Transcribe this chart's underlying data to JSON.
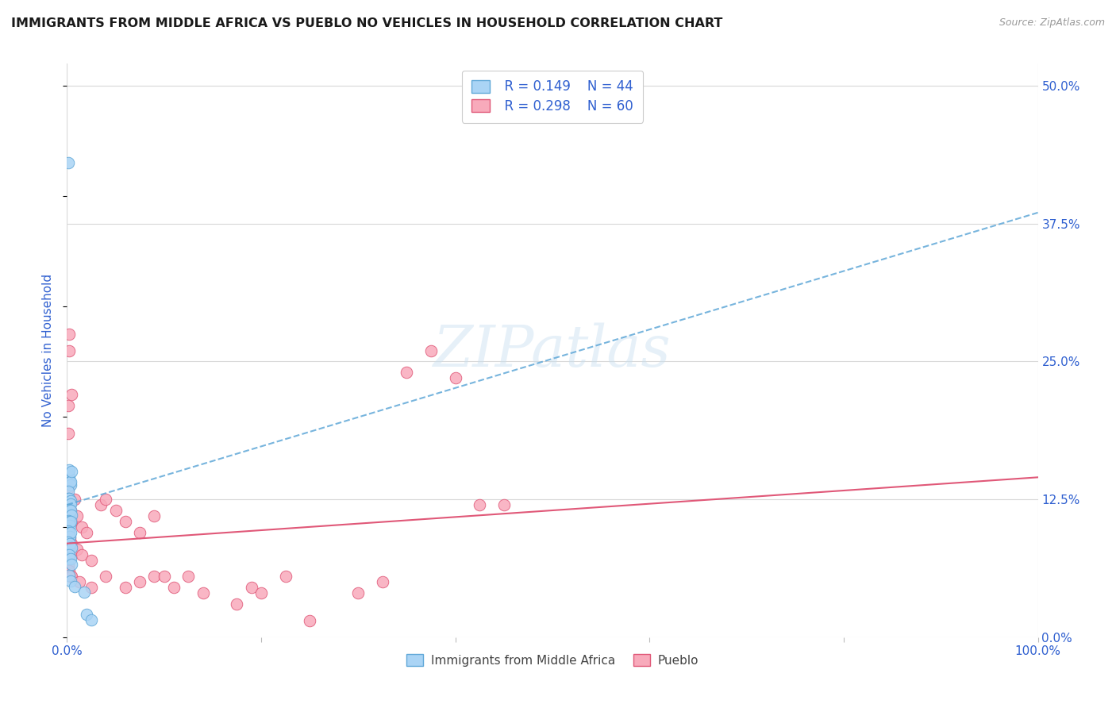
{
  "title": "IMMIGRANTS FROM MIDDLE AFRICA VS PUEBLO NO VEHICLES IN HOUSEHOLD CORRELATION CHART",
  "source": "Source: ZipAtlas.com",
  "ylabel": "No Vehicles in Household",
  "xlim": [
    0,
    100
  ],
  "ylim": [
    0,
    52
  ],
  "yticks": [
    0,
    12.5,
    25.0,
    37.5,
    50.0
  ],
  "ytick_labels": [
    "0.0%",
    "12.5%",
    "25.0%",
    "37.5%",
    "50.0%"
  ],
  "xtick_positions": [
    0,
    20,
    40,
    60,
    80,
    100
  ],
  "xtick_labels": [
    "0.0%",
    "",
    "",
    "",
    "",
    "100.0%"
  ],
  "background_color": "#ffffff",
  "grid_color": "#d8d8d8",
  "watermark": "ZIPatlas",
  "series1_label": "Immigrants from Middle Africa",
  "series2_label": "Pueblo",
  "series1_color": "#aad4f5",
  "series2_color": "#f8aabb",
  "series1_edge_color": "#60a8d8",
  "series2_edge_color": "#e05878",
  "legend_R1": "R = 0.149",
  "legend_N1": "N = 44",
  "legend_R2": "R = 0.298",
  "legend_N2": "N = 60",
  "legend_text_color": "#3060d0",
  "series1_line_color": "#60a8d8",
  "series2_line_color": "#e05878",
  "s1_R": 0.149,
  "s2_R": 0.298,
  "blue_line": [
    0,
    100
  ],
  "blue_line_y": [
    12.0,
    38.5
  ],
  "pink_line": [
    0,
    100
  ],
  "pink_line_y": [
    8.5,
    14.5
  ],
  "blue_points": [
    [
      0.15,
      43.0
    ],
    [
      0.1,
      14.8
    ],
    [
      0.15,
      14.2
    ],
    [
      0.2,
      14.6
    ],
    [
      0.25,
      15.2
    ],
    [
      0.3,
      14.1
    ],
    [
      0.35,
      13.8
    ],
    [
      0.4,
      14.1
    ],
    [
      0.5,
      15.0
    ],
    [
      0.1,
      13.2
    ],
    [
      0.15,
      12.6
    ],
    [
      0.2,
      12.2
    ],
    [
      0.25,
      12.6
    ],
    [
      0.3,
      12.1
    ],
    [
      0.35,
      12.4
    ],
    [
      0.4,
      12.1
    ],
    [
      0.2,
      11.2
    ],
    [
      0.25,
      11.6
    ],
    [
      0.3,
      11.1
    ],
    [
      0.35,
      11.5
    ],
    [
      0.45,
      11.1
    ],
    [
      0.15,
      10.6
    ],
    [
      0.25,
      10.5
    ],
    [
      0.3,
      10.1
    ],
    [
      0.35,
      10.5
    ],
    [
      0.1,
      9.6
    ],
    [
      0.2,
      9.1
    ],
    [
      0.25,
      9.5
    ],
    [
      0.3,
      9.1
    ],
    [
      0.4,
      9.5
    ],
    [
      0.15,
      8.6
    ],
    [
      0.25,
      8.1
    ],
    [
      0.3,
      8.5
    ],
    [
      0.45,
      8.1
    ],
    [
      0.1,
      7.1
    ],
    [
      0.2,
      7.5
    ],
    [
      0.35,
      7.1
    ],
    [
      0.5,
      6.6
    ],
    [
      0.25,
      5.6
    ],
    [
      0.4,
      5.1
    ],
    [
      0.75,
      4.6
    ],
    [
      1.8,
      4.1
    ],
    [
      2.0,
      2.1
    ],
    [
      2.5,
      1.6
    ]
  ],
  "pink_points": [
    [
      0.1,
      21.0
    ],
    [
      0.15,
      18.5
    ],
    [
      0.2,
      27.5
    ],
    [
      0.25,
      26.0
    ],
    [
      0.5,
      22.0
    ],
    [
      0.1,
      14.5
    ],
    [
      0.15,
      13.5
    ],
    [
      0.2,
      12.5
    ],
    [
      0.25,
      12.0
    ],
    [
      0.3,
      12.5
    ],
    [
      0.35,
      11.5
    ],
    [
      0.4,
      11.0
    ],
    [
      0.45,
      10.5
    ],
    [
      0.75,
      12.5
    ],
    [
      1.0,
      11.0
    ],
    [
      1.5,
      10.0
    ],
    [
      2.0,
      9.5
    ],
    [
      0.15,
      9.5
    ],
    [
      0.2,
      8.5
    ],
    [
      0.25,
      8.0
    ],
    [
      0.3,
      9.0
    ],
    [
      0.35,
      8.5
    ],
    [
      0.4,
      8.0
    ],
    [
      0.45,
      7.5
    ],
    [
      0.5,
      8.5
    ],
    [
      1.0,
      8.0
    ],
    [
      1.5,
      7.5
    ],
    [
      2.5,
      7.0
    ],
    [
      3.5,
      12.0
    ],
    [
      4.0,
      12.5
    ],
    [
      5.0,
      11.5
    ],
    [
      6.0,
      10.5
    ],
    [
      7.5,
      9.5
    ],
    [
      9.0,
      11.0
    ],
    [
      0.15,
      6.5
    ],
    [
      0.25,
      6.0
    ],
    [
      0.35,
      5.5
    ],
    [
      0.5,
      5.5
    ],
    [
      1.25,
      5.0
    ],
    [
      2.5,
      4.5
    ],
    [
      4.0,
      5.5
    ],
    [
      6.0,
      4.5
    ],
    [
      7.5,
      5.0
    ],
    [
      9.0,
      5.5
    ],
    [
      10.0,
      5.5
    ],
    [
      11.0,
      4.5
    ],
    [
      12.5,
      5.5
    ],
    [
      14.0,
      4.0
    ],
    [
      17.5,
      3.0
    ],
    [
      19.0,
      4.5
    ],
    [
      20.0,
      4.0
    ],
    [
      22.5,
      5.5
    ],
    [
      25.0,
      1.5
    ],
    [
      30.0,
      4.0
    ],
    [
      32.5,
      5.0
    ],
    [
      35.0,
      24.0
    ],
    [
      37.5,
      26.0
    ],
    [
      40.0,
      23.5
    ],
    [
      42.5,
      12.0
    ],
    [
      45.0,
      12.0
    ]
  ]
}
